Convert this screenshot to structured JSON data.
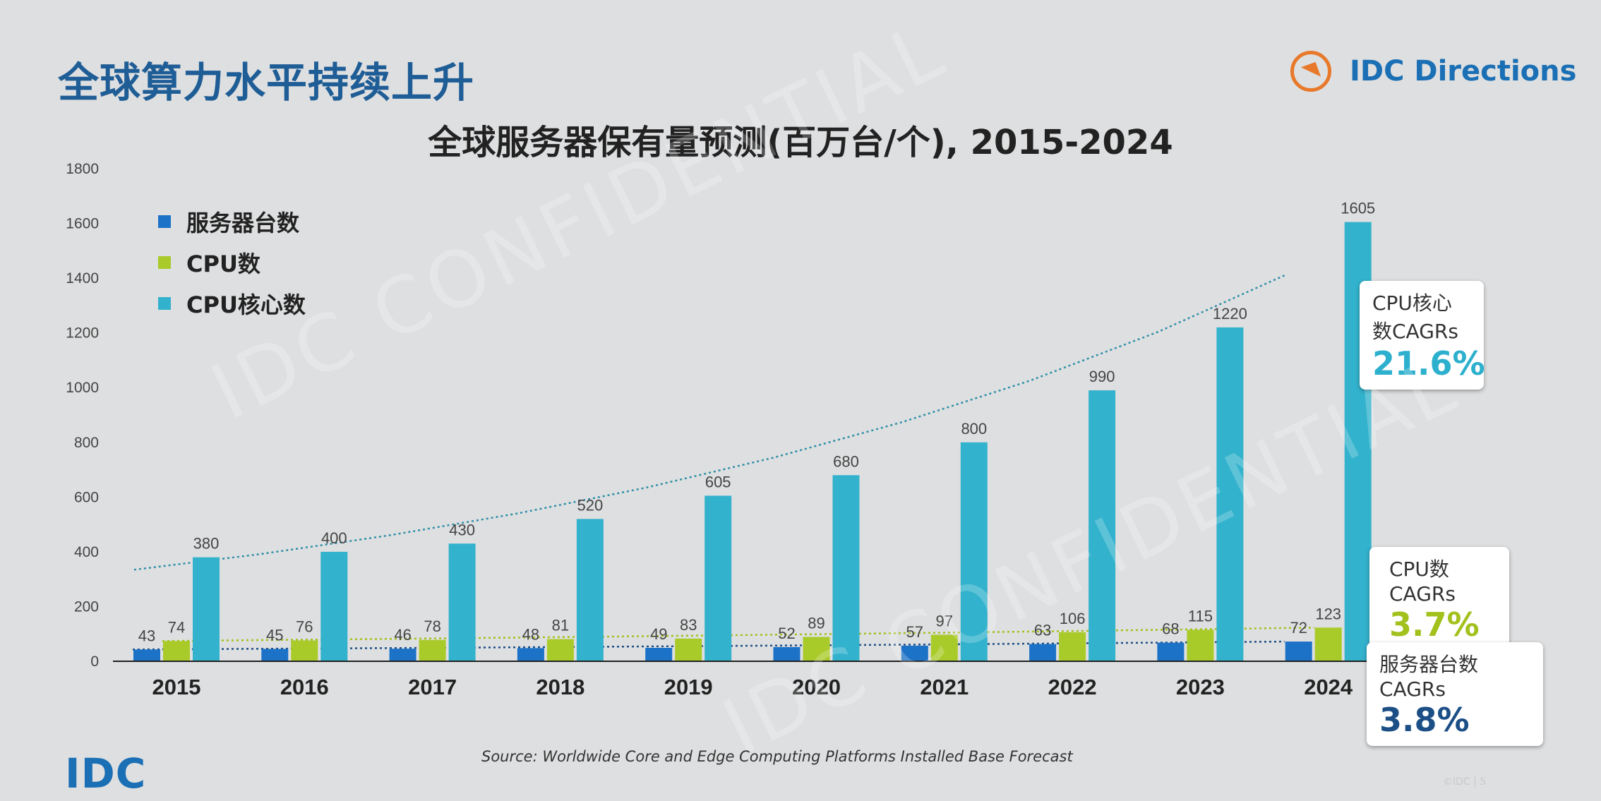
{
  "page_title": "全球算力水平持续上升",
  "brand": {
    "name": "IDC Directions",
    "icon": "compass-arrow-icon",
    "accent": "#e8782a",
    "color": "#1a6fb5"
  },
  "footer": {
    "logo": "IDC",
    "source": "Source: Worldwide Core and Edge Computing Platforms Installed Base Forecast",
    "note": "©IDC |   5"
  },
  "watermark": "IDC CONFIDENTIAL",
  "callouts": [
    {
      "label": "CPU核心数CAGRs",
      "value": "21.6%",
      "color": "#2db0cd"
    },
    {
      "label": "CPU数CAGRs",
      "value": "3.7%",
      "color": "#a2c11d"
    },
    {
      "label": "服务器台数CAGRs",
      "value": "3.8%",
      "color": "#1c4f86"
    }
  ],
  "chart_data": {
    "type": "bar",
    "title": "全球服务器保有量预测(百万台/个), 2015-2024",
    "categories": [
      "2015",
      "2016",
      "2017",
      "2018",
      "2019",
      "2020",
      "2021",
      "2022",
      "2023",
      "2024"
    ],
    "ylim": [
      0,
      1800
    ],
    "yticks": [
      0,
      200,
      400,
      600,
      800,
      1000,
      1200,
      1400,
      1600,
      1800
    ],
    "grid": false,
    "legend_position": "top-left",
    "series": [
      {
        "name": "服务器台数",
        "color": "#1c72c7",
        "values": [
          43,
          45,
          46,
          48,
          49,
          52,
          57,
          63,
          68,
          72
        ]
      },
      {
        "name": "CPU数",
        "color": "#a9cb2a",
        "values": [
          74,
          76,
          78,
          81,
          83,
          89,
          97,
          106,
          115,
          123
        ]
      },
      {
        "name": "CPU核心数",
        "color": "#33b2cd",
        "values": [
          380,
          400,
          430,
          520,
          605,
          680,
          800,
          990,
          1220,
          1605
        ]
      }
    ]
  }
}
